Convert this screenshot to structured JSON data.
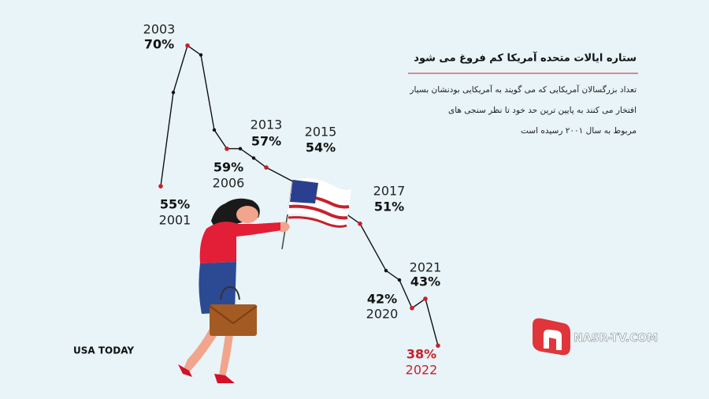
{
  "chart_data": {
    "type": "line",
    "title": "ستاره ایالات متحده آمریکا کم فروغ می شود",
    "description": [
      "تعداد بزرگسالان آمریکایی که می گویند به آمریکایی بودنشان بسیار",
      "افتخار می کنند به پایین ترین حد خود تا نظر سنجی های",
      "مربوط به سال ۲۰۰۱ رسیده است"
    ],
    "categories": [
      "2001",
      null,
      "2003",
      null,
      null,
      "2006",
      null,
      null,
      "2013",
      "2015",
      null,
      "2017",
      null,
      null,
      "2020",
      "2021",
      "2022"
    ],
    "values": [
      55,
      65,
      70,
      69,
      61,
      59,
      59,
      58,
      57,
      54,
      52,
      51,
      46,
      45,
      42,
      43,
      38
    ],
    "value_labels": [
      "55%",
      null,
      "70%",
      null,
      null,
      "59%",
      null,
      null,
      "57%",
      "54%",
      null,
      "51%",
      null,
      null,
      "42%",
      "43%",
      "38%"
    ],
    "color": "#111111",
    "highlight_color": "#c8202c",
    "ylim": [
      35,
      72
    ],
    "source": "USA TODAY"
  },
  "watermark": "NASR-TV.COM"
}
